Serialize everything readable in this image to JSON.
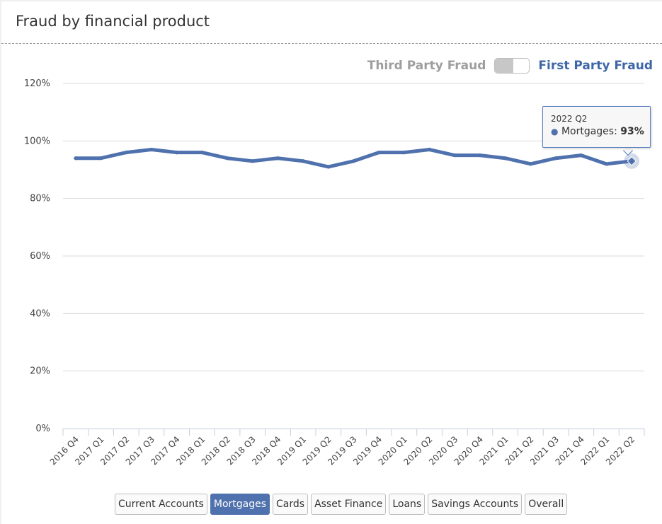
{
  "panel": {
    "title": "Fraud by financial product"
  },
  "toggle": {
    "left_label": "Third Party Fraud",
    "right_label": "First Party Fraud",
    "selected": "First Party Fraud"
  },
  "tooltip": {
    "period": "2022 Q2",
    "series": "Mortgages",
    "value": "93%"
  },
  "tabs": [
    {
      "label": "Current Accounts",
      "active": false
    },
    {
      "label": "Mortgages",
      "active": true
    },
    {
      "label": "Cards",
      "active": false
    },
    {
      "label": "Asset Finance",
      "active": false
    },
    {
      "label": "Loans",
      "active": false
    },
    {
      "label": "Savings Accounts",
      "active": false
    },
    {
      "label": "Overall",
      "active": false
    }
  ],
  "colors": {
    "series": "#4f71ad",
    "accent": "#3f67a7",
    "grid": "#d9d9d9"
  },
  "chart_data": {
    "type": "line",
    "title": "",
    "xlabel": "",
    "ylabel": "",
    "ylim": [
      0,
      120
    ],
    "yticks": [
      "0%",
      "20%",
      "40%",
      "60%",
      "80%",
      "100%",
      "120%"
    ],
    "grid": true,
    "categories": [
      "2016 Q4",
      "2017 Q1",
      "2017 Q2",
      "2017 Q3",
      "2017 Q4",
      "2018 Q1",
      "2018 Q2",
      "2018 Q3",
      "2018 Q4",
      "2019 Q1",
      "2019 Q2",
      "2019 Q3",
      "2019 Q4",
      "2020 Q1",
      "2020 Q2",
      "2020 Q3",
      "2020 Q4",
      "2021 Q1",
      "2021 Q2",
      "2021 Q3",
      "2021 Q4",
      "2022 Q1",
      "2022 Q2"
    ],
    "series": [
      {
        "name": "Mortgages",
        "values": [
          94,
          94,
          96,
          97,
          96,
          96,
          94,
          93,
          94,
          93,
          91,
          93,
          96,
          96,
          97,
          95,
          95,
          94,
          92,
          94,
          95,
          92,
          93
        ]
      }
    ]
  }
}
